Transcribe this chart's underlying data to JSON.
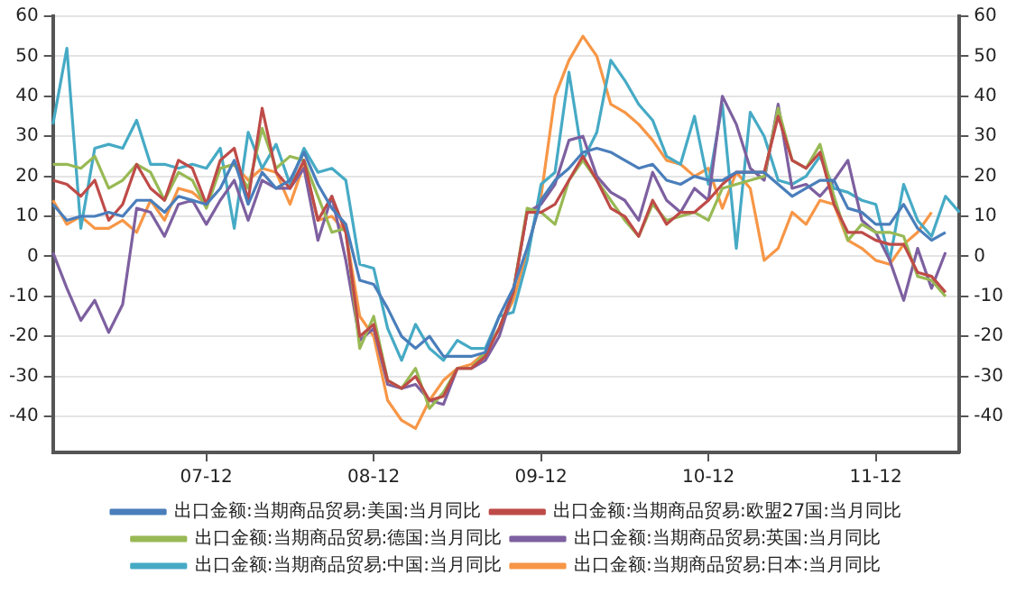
{
  "chart_data": {
    "type": "line",
    "categories": [
      null,
      null,
      null,
      null,
      null,
      null,
      null,
      null,
      null,
      null,
      null,
      "07-12",
      null,
      null,
      null,
      null,
      null,
      null,
      null,
      null,
      null,
      null,
      null,
      "08-12",
      null,
      null,
      null,
      null,
      null,
      null,
      null,
      null,
      null,
      null,
      null,
      "09-12",
      null,
      null,
      null,
      null,
      null,
      null,
      null,
      null,
      null,
      null,
      null,
      "10-12",
      null,
      null,
      null,
      null,
      null,
      null,
      null,
      null,
      null,
      null,
      null,
      "11-12",
      null,
      null,
      null,
      null,
      null,
      null
    ],
    "series": [
      {
        "name": "出口金额:当期商品贸易:美国:当月同比",
        "color": "#4a7ebb",
        "values": [
          13,
          9,
          10,
          10,
          11,
          10,
          14,
          14,
          11,
          15,
          14,
          13,
          17,
          24,
          13,
          21,
          17,
          19,
          26,
          18,
          12,
          8,
          -6,
          -7,
          -13,
          -20,
          -23,
          -20,
          -25,
          -25,
          -25,
          -24,
          -15,
          -8,
          2,
          14,
          19,
          22,
          26,
          27,
          26,
          24,
          22,
          23,
          19,
          18,
          20,
          19,
          19,
          21,
          21,
          21,
          18,
          15,
          17,
          19,
          19,
          12,
          11,
          8,
          8,
          13,
          7,
          4,
          6,
          null
        ]
      },
      {
        "name": "出口金额:当期商品贸易:欧盟27国:当月同比",
        "color": "#be4b48",
        "values": [
          19,
          18,
          15,
          19,
          9,
          13,
          23,
          17,
          14,
          24,
          22,
          13,
          24,
          27,
          14,
          37,
          21,
          17,
          24,
          9,
          15,
          6,
          -20,
          -17,
          -31,
          -33,
          -30,
          -36,
          -35,
          -28,
          -28,
          -25,
          -18,
          -9,
          11,
          11,
          13,
          19,
          25,
          19,
          12,
          10,
          5,
          14,
          8,
          11,
          11,
          14,
          18,
          21,
          21,
          21,
          35,
          24,
          22,
          26,
          13,
          6,
          6,
          4,
          3,
          3,
          -4,
          -5,
          -9,
          null
        ]
      },
      {
        "name": "出口金额:当期商品贸易:德国:当月同比",
        "color": "#98b954",
        "values": [
          23,
          23,
          22,
          25,
          17,
          19,
          23,
          21,
          14,
          21,
          19,
          12,
          22,
          23,
          17,
          32,
          22,
          25,
          24,
          15,
          6,
          7,
          -23,
          -15,
          -31,
          -33,
          -28,
          -38,
          -34,
          -28,
          -28,
          -24,
          -18,
          -9,
          12,
          11,
          8,
          19,
          24,
          19,
          14,
          9,
          5,
          13,
          9,
          10,
          11,
          9,
          17,
          18,
          19,
          20,
          37,
          24,
          22,
          28,
          15,
          4,
          8,
          6,
          6,
          5,
          -5,
          -6,
          -10,
          null
        ]
      },
      {
        "name": "出口金额:当期商品贸易:英国:当月同比",
        "color": "#7d60a0",
        "values": [
          1,
          -8,
          -16,
          -11,
          -19,
          -12,
          12,
          11,
          5,
          13,
          14,
          8,
          14,
          19,
          9,
          19,
          17,
          17,
          22,
          4,
          15,
          -1,
          -21,
          -18,
          -32,
          -33,
          -32,
          -36,
          -37,
          -28,
          -28,
          -26,
          -20,
          -9,
          11,
          13,
          18,
          29,
          30,
          20,
          16,
          14,
          9,
          21,
          14,
          11,
          17,
          14,
          40,
          33,
          22,
          19,
          38,
          17,
          18,
          15,
          19,
          24,
          9,
          6,
          -1,
          -11,
          2,
          -8,
          1,
          null
        ]
      },
      {
        "name": "出口金额:当期商品贸易:中国:当月同比",
        "color": "#46aac5",
        "values": [
          33,
          52,
          7,
          27,
          28,
          27,
          34,
          23,
          23,
          22,
          23,
          22,
          27,
          7,
          31,
          22,
          28,
          18,
          27,
          21,
          22,
          19,
          -2,
          -3,
          -18,
          -26,
          -17,
          -23,
          -26,
          -21,
          -23,
          -23,
          -15,
          -14,
          -1,
          18,
          21,
          46,
          24,
          31,
          49,
          44,
          38,
          34,
          25,
          23,
          35,
          18,
          38,
          2,
          36,
          30,
          19,
          18,
          20,
          25,
          17,
          16,
          14,
          13,
          -1,
          18,
          9,
          5,
          15,
          11
        ]
      },
      {
        "name": "出口金额:当期商品贸易:日本:当月同比",
        "color": "#f79646",
        "values": [
          14,
          8,
          10,
          7,
          7,
          9,
          6,
          14,
          9,
          17,
          16,
          13,
          22,
          23,
          19,
          22,
          21,
          13,
          23,
          9,
          10,
          6,
          -15,
          -20,
          -36,
          -41,
          -43,
          -36,
          -31,
          -28,
          -27,
          -24,
          -18,
          -11,
          1,
          15,
          40,
          49,
          55,
          50,
          38,
          36,
          33,
          29,
          24,
          23,
          20,
          22,
          12,
          21,
          17,
          -1,
          2,
          11,
          8,
          14,
          13,
          4,
          2,
          -1,
          -2,
          3,
          6,
          11,
          null,
          null
        ]
      }
    ],
    "ylim": [
      -49,
      60
    ],
    "yticks": [
      -40,
      -30,
      -20,
      -10,
      0,
      10,
      20,
      30,
      40,
      50,
      60
    ],
    "y2lim": [
      -49,
      60
    ],
    "y2ticks": [
      -40,
      -30,
      -20,
      -10,
      0,
      10,
      20,
      30,
      40,
      50,
      60
    ],
    "grid": "y",
    "legend": "bottom",
    "marker": "none",
    "line_style": "solid"
  }
}
